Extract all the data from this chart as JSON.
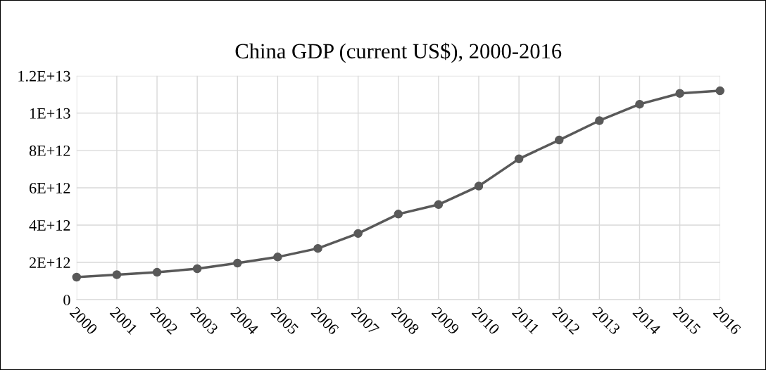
{
  "chart_data": {
    "type": "line",
    "title": "China GDP (current US$), 2000-2016",
    "categories": [
      "2000",
      "2001",
      "2002",
      "2003",
      "2004",
      "2005",
      "2006",
      "2007",
      "2008",
      "2009",
      "2010",
      "2011",
      "2012",
      "2013",
      "2014",
      "2015",
      "2016"
    ],
    "series": [
      {
        "color": "#595959",
        "values": [
          1210000000000.0,
          1340000000000.0,
          1470000000000.0,
          1660000000000.0,
          1960000000000.0,
          2290000000000.0,
          2750000000000.0,
          3550000000000.0,
          4590000000000.0,
          5100000000000.0,
          6090000000000.0,
          7550000000000.0,
          8560000000000.0,
          9600000000000.0,
          10480000000000.0,
          11060000000000.0,
          11200000000000.0
        ]
      }
    ],
    "ylim": [
      0,
      12000000000000.0
    ],
    "yticks": [
      0,
      {
        "value": 2000000000000.0,
        "label": "2E+12"
      },
      {
        "value": 4000000000000.0,
        "label": "4E+12"
      },
      {
        "value": 6000000000000.0,
        "label": "6E+12"
      },
      {
        "value": 8000000000000.0,
        "label": "8E+12"
      },
      {
        "value": 10000000000000.0,
        "label": "1E+13"
      },
      {
        "value": 12000000000000.0,
        "label": "1.2E+13"
      }
    ],
    "grid": true,
    "marker": "circle",
    "line_style": "solid"
  }
}
